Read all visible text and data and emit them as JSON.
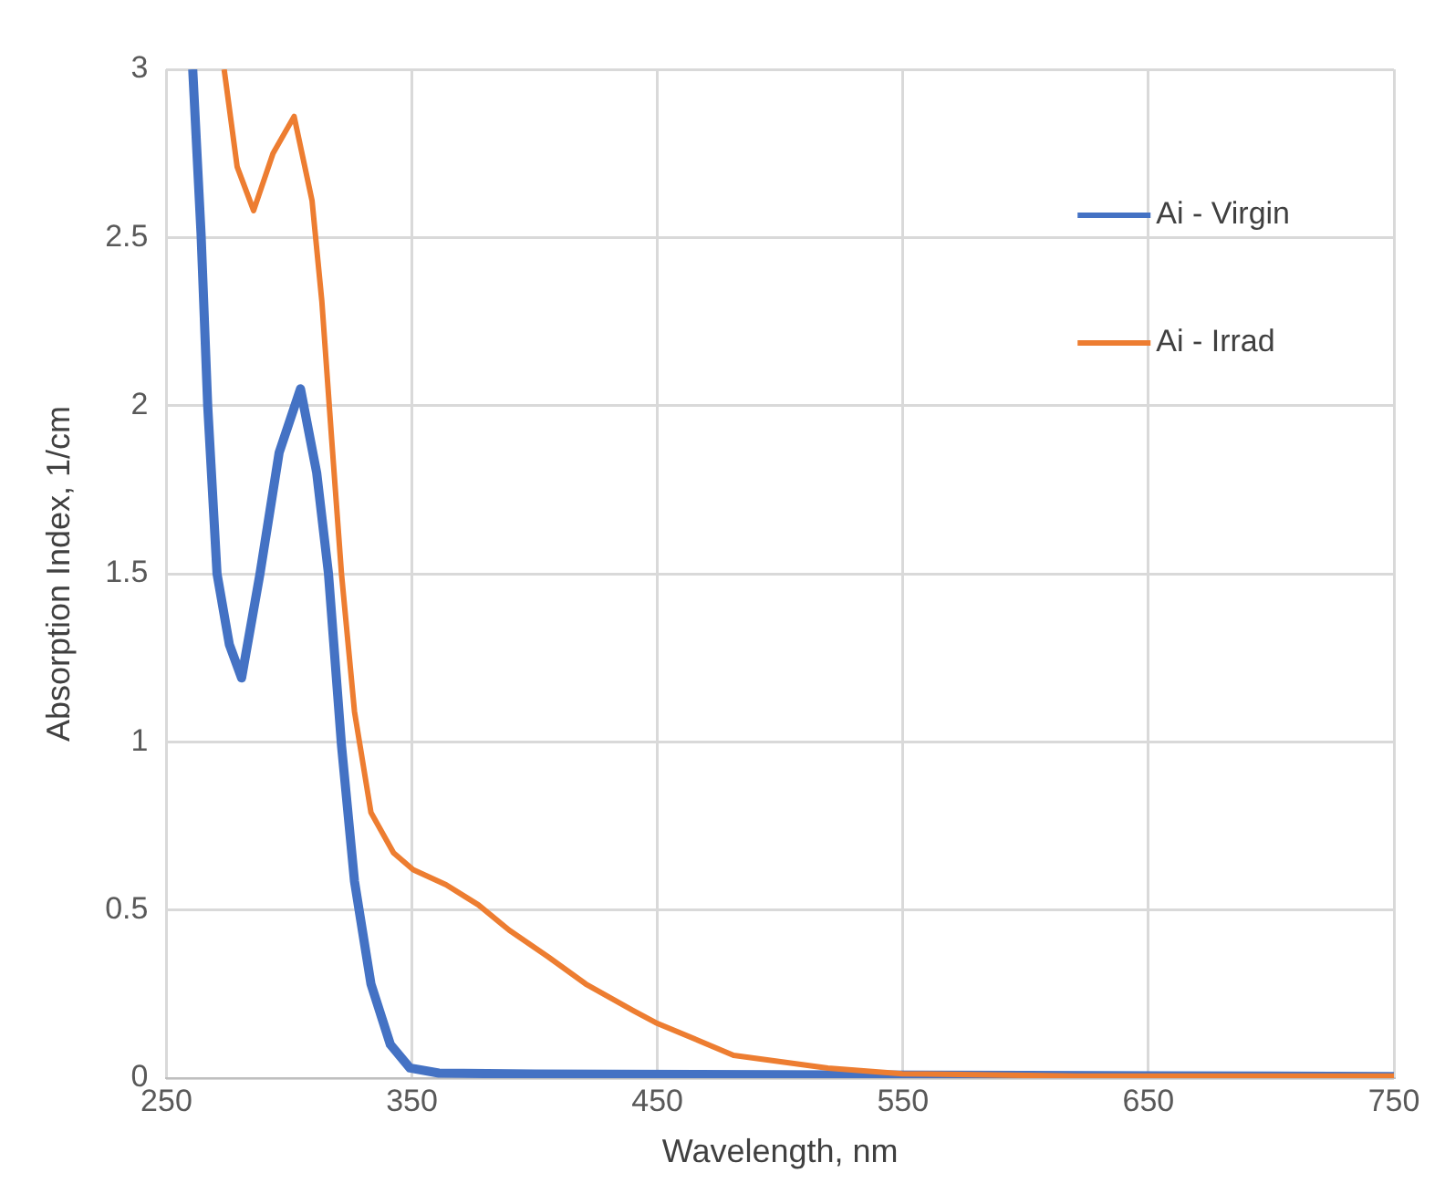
{
  "chart_data": {
    "type": "line",
    "xlabel": "Wavelength, nm",
    "ylabel": "Absorption Index, 1/cm",
    "xlim": [
      250,
      750
    ],
    "xticks": [
      250,
      350,
      450,
      550,
      650,
      750
    ],
    "ylim": [
      0,
      3
    ],
    "yticks": [
      0,
      0.5,
      1,
      1.5,
      2,
      2.5,
      3
    ],
    "grid": true,
    "legend": "top right",
    "marker": "none",
    "line_style": "solid",
    "series": [
      {
        "name": "Ai - Virgin",
        "color": "#4472c4",
        "x": [
          260.7,
          264.1,
          266.8,
          270.6,
          275.6,
          280.6,
          288.1,
          295.9,
          304.6,
          311.2,
          316,
          321.3,
          326.6,
          333.3,
          341.2,
          349.2,
          361,
          400,
          500,
          600,
          700,
          750
        ],
        "values": [
          3.0,
          2.51,
          2.0,
          1.5,
          1.29,
          1.19,
          1.5,
          1.86,
          2.05,
          1.8,
          1.5,
          0.99,
          0.585,
          0.28,
          0.1,
          0.03,
          0.015,
          0.012,
          0.01,
          0.008,
          0.006,
          0.005
        ]
      },
      {
        "name": "Ai - Irrad",
        "color": "#ed7d31",
        "x": [
          273.5,
          278.8,
          285.5,
          293.4,
          302,
          309.3,
          313.3,
          317.3,
          321.3,
          326.6,
          333.3,
          342.5,
          350.5,
          363.9,
          377.1,
          389.6,
          405.6,
          420.8,
          440.4,
          449.3,
          481,
          519.4,
          549.7,
          621,
          750
        ],
        "values": [
          3.0,
          2.71,
          2.58,
          2.75,
          2.86,
          2.61,
          2.31,
          1.9,
          1.5,
          1.09,
          0.79,
          0.67,
          0.62,
          0.575,
          0.515,
          0.44,
          0.36,
          0.28,
          0.2,
          0.165,
          0.068,
          0.03,
          0.013,
          0.006,
          0.006
        ]
      }
    ]
  }
}
